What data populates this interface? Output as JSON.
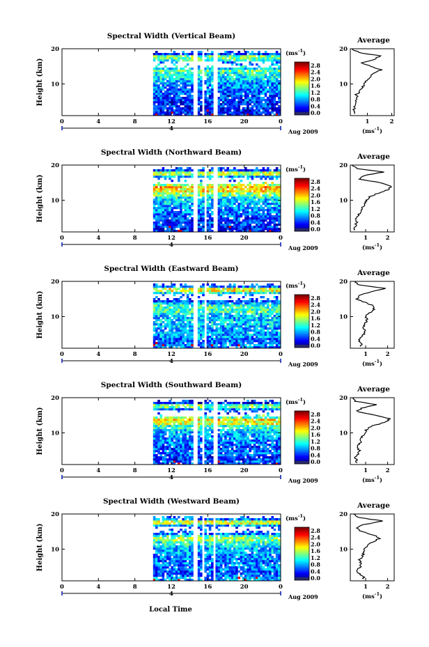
{
  "chart_data": [
    {
      "type": "heatmap",
      "title": "Spectral Width (Vertical Beam)",
      "avg_title": "Average",
      "ylabel": "Height (km)",
      "xticks": [
        "0",
        "4",
        "8",
        "12",
        "16",
        "20",
        "0"
      ],
      "yticks": [
        "20",
        "10"
      ],
      "date_mid": "4",
      "date_label": "Aug 2009",
      "unit_label": "(ms",
      "unit_exp": "-1",
      "unit_close": ")",
      "colorbar_ticks": [
        "2.8",
        "2.4",
        "2.0",
        "1.6",
        "1.2",
        "0.8",
        "0.4",
        "0.0"
      ],
      "avg_xticks": [
        "1",
        "2"
      ],
      "xlim": [
        0,
        24
      ],
      "ylim": [
        1,
        20
      ],
      "clim": [
        0,
        3.0
      ],
      "avg_xlim": [
        0.3,
        2.1
      ],
      "data_start_hour": 10,
      "gaps": [
        [
          14.2,
          14.7
        ],
        [
          15.2,
          15.5
        ],
        [
          16.6,
          16.9
        ]
      ],
      "avg_profile": [
        [
          0.5,
          2
        ],
        [
          0.45,
          3
        ],
        [
          0.55,
          4
        ],
        [
          0.5,
          5
        ],
        [
          0.6,
          6
        ],
        [
          0.55,
          7
        ],
        [
          0.7,
          8
        ],
        [
          0.8,
          9
        ],
        [
          0.85,
          10
        ],
        [
          0.95,
          11
        ],
        [
          1.1,
          12
        ],
        [
          1.25,
          13
        ],
        [
          1.6,
          14
        ],
        [
          1.1,
          15
        ],
        [
          0.8,
          16
        ],
        [
          1.3,
          17
        ],
        [
          1.5,
          18
        ],
        [
          0.6,
          19
        ],
        [
          0.4,
          20
        ]
      ]
    },
    {
      "type": "heatmap",
      "title": "Spectral Width (Northward Beam)",
      "avg_title": "Average",
      "ylabel": "Height (km)",
      "xticks": [
        "0",
        "4",
        "8",
        "12",
        "16",
        "20",
        "0"
      ],
      "yticks": [
        "20",
        "10"
      ],
      "date_mid": "4",
      "date_label": "Aug 2009",
      "unit_label": "(ms",
      "unit_exp": "-1",
      "unit_close": ")",
      "colorbar_ticks": [
        "2.8",
        "2.4",
        "2.0",
        "1.6",
        "1.2",
        "0.8",
        "0.4",
        "0.0"
      ],
      "avg_xticks": [
        "1",
        "2"
      ],
      "xlim": [
        0,
        24
      ],
      "ylim": [
        1,
        20
      ],
      "clim": [
        0,
        3.0
      ],
      "avg_xlim": [
        0.3,
        2.3
      ],
      "data_start_hour": 10,
      "gaps": [
        [
          14.2,
          14.7
        ],
        [
          15.4,
          15.7
        ],
        [
          16.6,
          16.9
        ]
      ],
      "avg_profile": [
        [
          0.5,
          2
        ],
        [
          0.55,
          3
        ],
        [
          0.6,
          4
        ],
        [
          0.55,
          5
        ],
        [
          0.7,
          6
        ],
        [
          0.8,
          7
        ],
        [
          0.85,
          8
        ],
        [
          0.95,
          9
        ],
        [
          1.05,
          10
        ],
        [
          1.2,
          11
        ],
        [
          1.55,
          12
        ],
        [
          2.0,
          13
        ],
        [
          2.2,
          14
        ],
        [
          1.7,
          15
        ],
        [
          0.7,
          16
        ],
        [
          0.9,
          17
        ],
        [
          1.8,
          18
        ],
        [
          0.6,
          19
        ],
        [
          0.4,
          20
        ]
      ]
    },
    {
      "type": "heatmap",
      "title": "Spectral Width (Eastward Beam)",
      "avg_title": "Average",
      "ylabel": "Height (km)",
      "xticks": [
        "0",
        "4",
        "8",
        "12",
        "16",
        "20",
        "0"
      ],
      "yticks": [
        "20",
        "10"
      ],
      "date_mid": "4",
      "date_label": "Aug 2009",
      "unit_label": "(ms",
      "unit_exp": "-1",
      "unit_close": ")",
      "colorbar_ticks": [
        "2.8",
        "2.4",
        "2.0",
        "1.6",
        "1.2",
        "0.8",
        "0.4",
        "0.0"
      ],
      "avg_xticks": [
        "1",
        "2"
      ],
      "xlim": [
        0,
        24
      ],
      "ylim": [
        1,
        20
      ],
      "clim": [
        0,
        3.0
      ],
      "avg_xlim": [
        0.3,
        2.3
      ],
      "data_start_hour": 10,
      "gaps": [
        [
          14.2,
          14.7
        ],
        [
          15.4,
          15.7
        ]
      ],
      "avg_profile": [
        [
          0.8,
          2
        ],
        [
          0.7,
          3
        ],
        [
          0.75,
          4
        ],
        [
          0.9,
          5
        ],
        [
          0.95,
          6
        ],
        [
          0.85,
          7
        ],
        [
          1.0,
          8
        ],
        [
          1.05,
          9
        ],
        [
          1.0,
          10
        ],
        [
          1.15,
          11
        ],
        [
          1.4,
          12
        ],
        [
          1.35,
          13
        ],
        [
          1.0,
          14
        ],
        [
          0.6,
          15
        ],
        [
          0.7,
          16
        ],
        [
          1.2,
          17
        ],
        [
          1.9,
          18
        ],
        [
          0.7,
          19
        ],
        [
          0.5,
          20
        ]
      ]
    },
    {
      "type": "heatmap",
      "title": "Spectral Width (Southward Beam)",
      "avg_title": "Average",
      "ylabel": "Height (km)",
      "xticks": [
        "0",
        "4",
        "8",
        "12",
        "16",
        "20",
        "0"
      ],
      "yticks": [
        "20",
        "10"
      ],
      "date_mid": "4",
      "date_label": "Aug 2009",
      "unit_label": "(ms",
      "unit_exp": "-1",
      "unit_close": ")",
      "colorbar_ticks": [
        "2.8",
        "2.4",
        "2.0",
        "1.6",
        "1.2",
        "0.8",
        "0.4",
        "0.0"
      ],
      "avg_xticks": [
        "1",
        "2"
      ],
      "xlim": [
        0,
        24
      ],
      "ylim": [
        1,
        20
      ],
      "clim": [
        0,
        3.0
      ],
      "avg_xlim": [
        0.3,
        2.3
      ],
      "data_start_hour": 10,
      "gaps": [
        [
          14.2,
          14.7
        ],
        [
          15.3,
          15.6
        ],
        [
          16.6,
          16.9
        ]
      ],
      "avg_profile": [
        [
          0.6,
          2
        ],
        [
          0.55,
          3
        ],
        [
          0.65,
          4
        ],
        [
          0.7,
          5
        ],
        [
          0.6,
          6
        ],
        [
          0.75,
          7
        ],
        [
          0.8,
          8
        ],
        [
          0.85,
          9
        ],
        [
          0.95,
          10
        ],
        [
          1.05,
          11
        ],
        [
          1.3,
          12
        ],
        [
          1.9,
          13
        ],
        [
          2.1,
          14
        ],
        [
          1.4,
          15
        ],
        [
          0.6,
          16
        ],
        [
          0.8,
          17
        ],
        [
          1.5,
          18
        ],
        [
          0.5,
          19
        ],
        [
          0.4,
          20
        ]
      ]
    },
    {
      "type": "heatmap",
      "title": "Spectral Width (Westward Beam)",
      "avg_title": "Average",
      "ylabel": "Height (km)",
      "xticks": [
        "0",
        "4",
        "8",
        "12",
        "16",
        "20",
        "0"
      ],
      "yticks": [
        "20",
        "10"
      ],
      "date_mid": "4",
      "date_label": "Aug 2009",
      "unit_label": "(ms",
      "unit_exp": "-1",
      "unit_close": ")",
      "colorbar_ticks": [
        "2.8",
        "2.4",
        "2.0",
        "1.6",
        "1.2",
        "0.8",
        "0.4",
        "0.0"
      ],
      "avg_xticks": [
        "1",
        "2"
      ],
      "xlim": [
        0,
        24
      ],
      "ylim": [
        1,
        20
      ],
      "clim": [
        0,
        3.0
      ],
      "avg_xlim": [
        0.3,
        2.3
      ],
      "data_start_hour": 10,
      "gaps": [
        [
          14.2,
          14.7
        ],
        [
          15.2,
          15.5
        ],
        [
          16.5,
          16.8
        ]
      ],
      "avg_profile": [
        [
          0.9,
          2
        ],
        [
          0.7,
          3
        ],
        [
          0.6,
          4
        ],
        [
          0.75,
          5
        ],
        [
          0.8,
          6
        ],
        [
          0.7,
          7
        ],
        [
          0.85,
          8
        ],
        [
          0.9,
          9
        ],
        [
          0.95,
          10
        ],
        [
          1.1,
          11
        ],
        [
          1.3,
          12
        ],
        [
          1.6,
          13
        ],
        [
          1.4,
          14
        ],
        [
          0.8,
          15
        ],
        [
          0.6,
          16
        ],
        [
          0.9,
          17
        ],
        [
          1.8,
          18
        ],
        [
          0.7,
          19
        ],
        [
          0.5,
          20
        ]
      ]
    }
  ],
  "xlabel": "Local Time"
}
